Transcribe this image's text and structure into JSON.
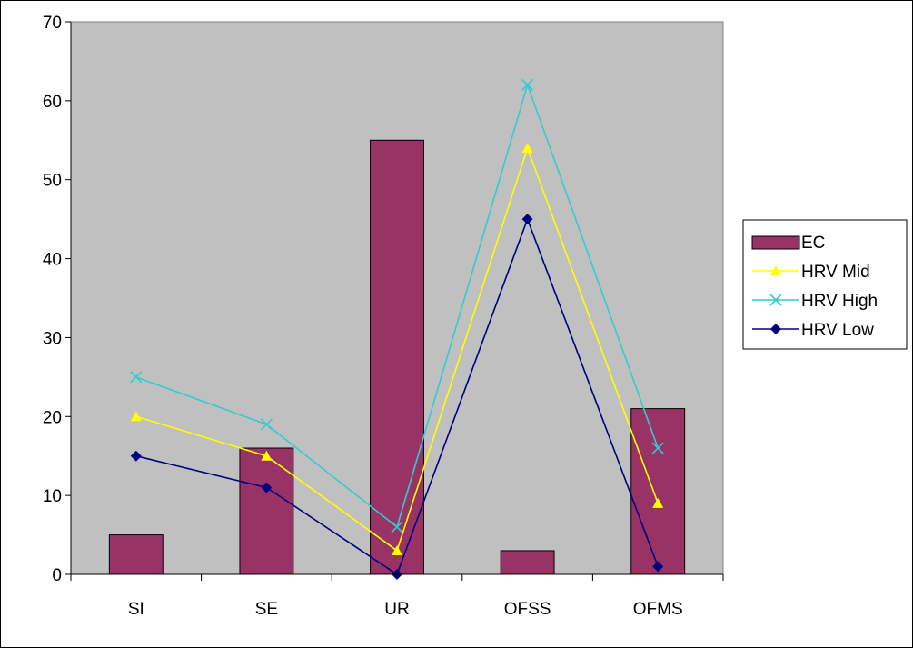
{
  "chart_data": {
    "type": "bar+line",
    "categories": [
      "SI",
      "SE",
      "UR",
      "OFSS",
      "OFMS"
    ],
    "ylim": [
      0,
      70
    ],
    "yticks": [
      0,
      10,
      20,
      30,
      40,
      50,
      60,
      70
    ],
    "grid": false,
    "plot_background": "#c0c0c0",
    "legend_position": "right",
    "bar_series": {
      "name": "EC",
      "color": "#993366",
      "values": [
        5,
        16,
        55,
        3,
        21
      ]
    },
    "line_series": [
      {
        "name": "HRV Mid",
        "color": "#ffff00",
        "marker": "triangle",
        "values": [
          20,
          15,
          3,
          54,
          9
        ]
      },
      {
        "name": "HRV High",
        "color": "#33cccc",
        "marker": "x",
        "values": [
          25,
          19,
          6,
          62,
          16
        ]
      },
      {
        "name": "HRV Low",
        "color": "#000080",
        "marker": "diamond",
        "values": [
          15,
          11,
          0,
          45,
          1
        ]
      }
    ]
  }
}
